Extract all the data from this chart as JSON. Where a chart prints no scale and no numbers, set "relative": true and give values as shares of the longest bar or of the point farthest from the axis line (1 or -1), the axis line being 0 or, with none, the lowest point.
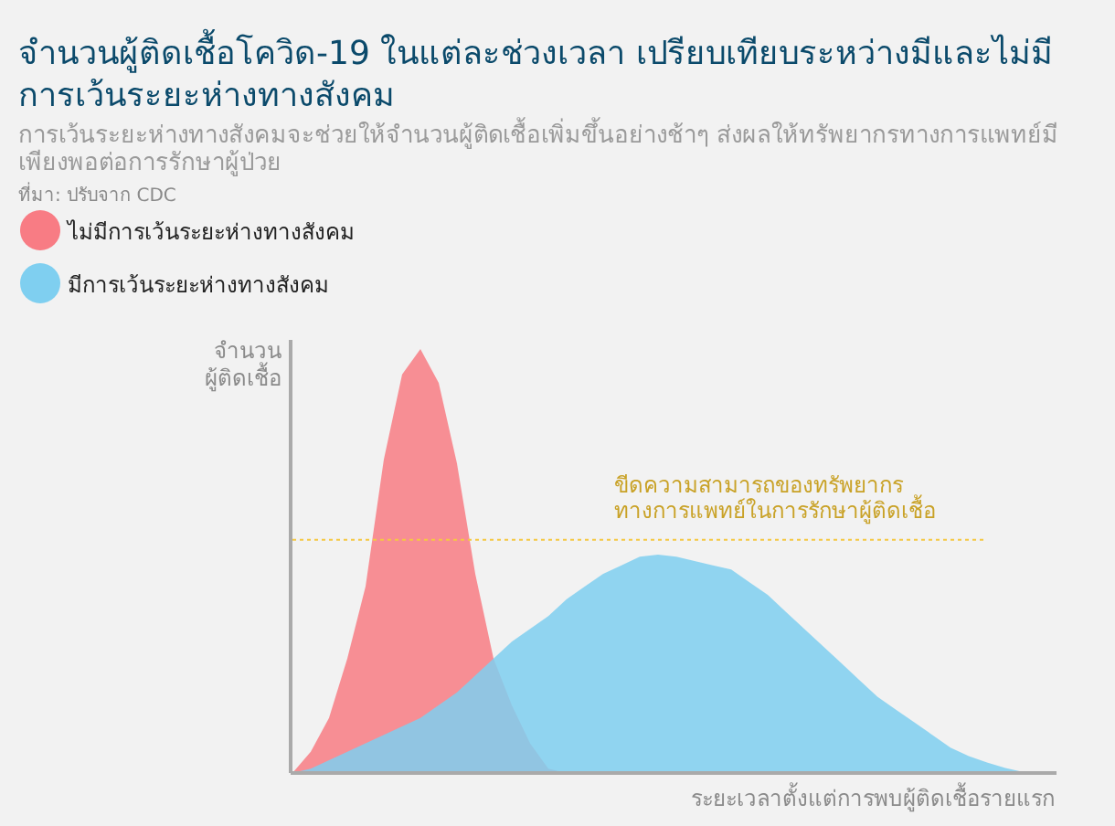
{
  "chart_data": {
    "type": "area",
    "title": "จำนวนผู้ติดเชื้อโควิด-19 ในแต่ละช่วงเวลา เปรียบเทียบระหว่างมีและไม่มีการเว้นระยะห่างทางสังคม",
    "subtitle": "การเว้นระยะห่างทางสังคมจะช่วยให้จำนวนผู้ติดเชื้อเพิ่มขึ้นอย่างช้าๆ ส่งผลให้ทรัพยากรทางการแพทย์มีเพียงพอต่อการรักษาผู้ป่วย",
    "annotations": [
      "ที่มา: ปรับจาก CDC"
    ],
    "xlabel": "ระยะเวลาตั้งแต่การพบผู้ติดเชื้อรายแรก",
    "ylabel": "จำนวน\nผู้ติดเชื้อ",
    "relative": true,
    "legend": "top left",
    "categories": [
      null,
      null,
      null,
      null,
      null,
      null,
      null,
      null,
      null,
      null,
      null,
      null,
      null,
      null,
      null,
      null,
      null,
      null,
      null,
      null,
      null,
      null,
      null,
      null,
      null,
      null,
      null,
      null,
      null,
      null,
      null,
      null,
      null,
      null,
      null,
      null,
      null,
      null,
      null,
      null,
      null,
      null,
      null
    ],
    "series": [
      {
        "name": "ไม่มีการเว้นระยะห่างทางสังคม",
        "color": "#f87c84",
        "values": [
          0,
          0.05,
          0.13,
          0.27,
          0.44,
          0.74,
          0.94,
          1,
          0.92,
          0.73,
          0.47,
          0.27,
          0.16,
          0.07,
          0.01,
          0,
          0,
          0,
          0,
          0,
          0,
          0,
          0,
          0,
          0,
          0,
          0,
          0,
          0,
          0,
          0,
          0,
          0,
          0,
          0,
          0,
          0,
          0,
          0,
          0,
          0,
          0,
          0
        ]
      },
      {
        "name": "มีการเว้นระยะห่างทางสังคม",
        "color": "#7fcff0",
        "values": [
          0,
          0.01,
          0.03,
          0.05,
          0.07,
          0.09,
          0.11,
          0.13,
          0.16,
          0.19,
          0.23,
          0.27,
          0.31,
          0.34,
          0.37,
          0.41,
          0.44,
          0.47,
          0.49,
          0.51,
          0.515,
          0.51,
          0.5,
          0.49,
          0.48,
          0.45,
          0.42,
          0.38,
          0.34,
          0.3,
          0.26,
          0.22,
          0.18,
          0.15,
          0.12,
          0.09,
          0.06,
          0.04,
          0.025,
          0.012,
          0.002,
          0,
          0
        ]
      }
    ],
    "ref_lines": [
      {
        "axis": "y",
        "value": 0.55,
        "label": "ขีดความสามารถของทรัพยากร\nทางการแพทย์ในการรักษาผู้ติดเชื้อ",
        "color": "#f5c842",
        "line_style": "dotted"
      }
    ]
  }
}
